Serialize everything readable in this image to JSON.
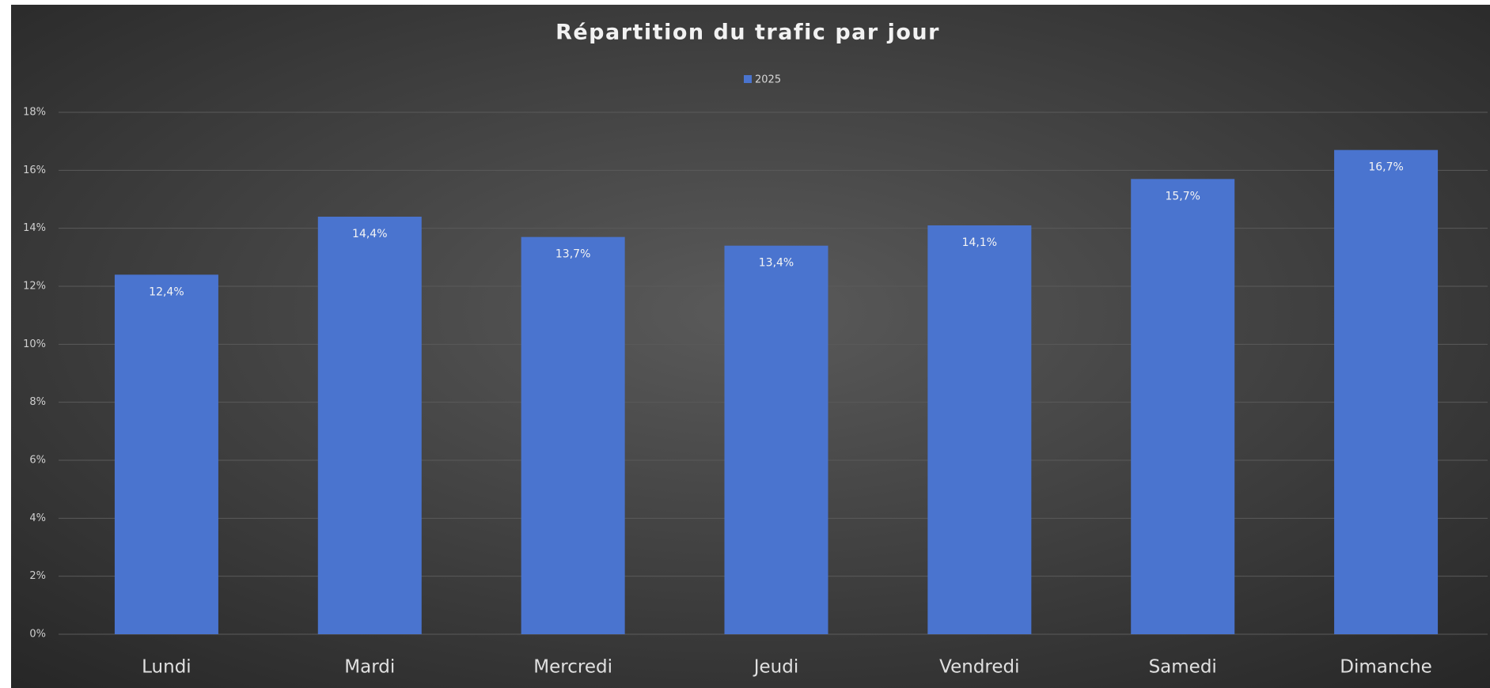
{
  "chart_data": {
    "type": "bar",
    "title": "Répartition du trafic par jour",
    "categories": [
      "Lundi",
      "Mardi",
      "Mercredi",
      "Jeudi",
      "Vendredi",
      "Samedi",
      "Dimanche"
    ],
    "series": [
      {
        "name": "2025",
        "color": "#4a74cf",
        "values": [
          12.4,
          14.4,
          13.7,
          13.4,
          14.1,
          15.7,
          16.7
        ],
        "value_labels": [
          "12,4%",
          "14,4%",
          "13,7%",
          "13,4%",
          "14,1%",
          "15,7%",
          "16,7%"
        ]
      }
    ],
    "ylim": [
      0,
      18
    ],
    "yticks": [
      {
        "value": 0,
        "label": "0%"
      },
      {
        "value": 2,
        "label": "2%"
      },
      {
        "value": 4,
        "label": "4%"
      },
      {
        "value": 6,
        "label": "6%"
      },
      {
        "value": 8,
        "label": "8%"
      },
      {
        "value": 10,
        "label": "10%"
      },
      {
        "value": 12,
        "label": "12%"
      },
      {
        "value": 14,
        "label": "14%"
      },
      {
        "value": 16,
        "label": "16%"
      },
      {
        "value": 18,
        "label": "18%"
      }
    ],
    "grid": true,
    "legend": "top"
  }
}
